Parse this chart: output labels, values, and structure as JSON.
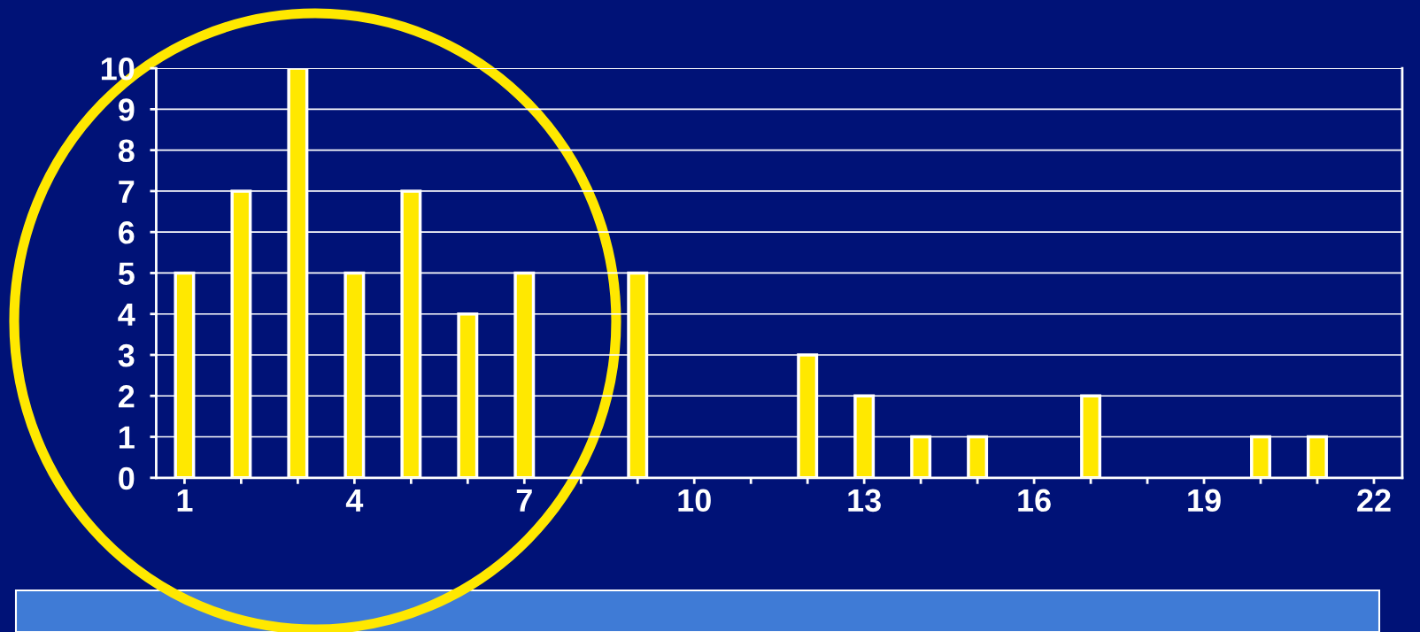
{
  "chart_data": {
    "type": "bar",
    "categories": [
      "1",
      null,
      null,
      "4",
      null,
      null,
      "7",
      null,
      null,
      "10",
      null,
      null,
      "13",
      null,
      null,
      "16",
      null,
      null,
      "19",
      null,
      null,
      "22"
    ],
    "series": [
      {
        "color": "#ffe800",
        "values": [
          5,
          7,
          10,
          5,
          7,
          4,
          5,
          null,
          5,
          null,
          null,
          3,
          2,
          1,
          1,
          null,
          2,
          null,
          null,
          1,
          1,
          null
        ]
      }
    ],
    "ylim": [
      0,
      10
    ],
    "yticks": [
      0,
      1,
      2,
      3,
      4,
      5,
      6,
      7,
      8,
      9,
      10
    ],
    "grid": "y",
    "legend": false
  }
}
